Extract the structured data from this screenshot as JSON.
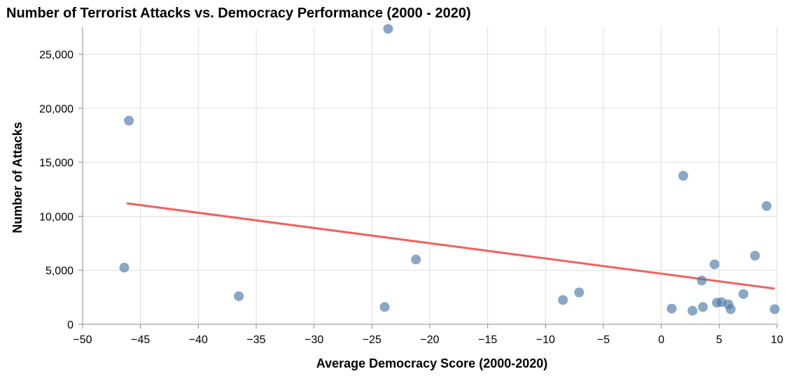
{
  "chart_data": {
    "type": "scatter",
    "title": "Number of Terrorist Attacks vs. Democracy Performance (2000 - 2020)",
    "xlabel": "Average Democracy Score (2000-2020)",
    "ylabel": "Number of Attacks",
    "xlim": [
      -50,
      10
    ],
    "ylim": [
      0,
      27500
    ],
    "grid": true,
    "x_ticks": [
      -50,
      -45,
      -40,
      -35,
      -30,
      -25,
      -20,
      -15,
      -10,
      -5,
      0,
      5,
      10
    ],
    "x_tick_labels": [
      "−50",
      "−45",
      "−40",
      "−35",
      "−30",
      "−25",
      "−20",
      "−15",
      "−10",
      "−5",
      "0",
      "5",
      "10"
    ],
    "y_ticks": [
      0,
      5000,
      10000,
      15000,
      20000,
      25000
    ],
    "y_tick_labels": [
      "0",
      "5,000",
      "10,000",
      "15,000",
      "20,000",
      "25,000"
    ],
    "points": [
      {
        "x": -23.6,
        "y": 27350
      },
      {
        "x": -46.0,
        "y": 18850
      },
      {
        "x": -46.4,
        "y": 5250
      },
      {
        "x": -36.5,
        "y": 2600
      },
      {
        "x": -23.9,
        "y": 1600
      },
      {
        "x": -21.2,
        "y": 6000
      },
      {
        "x": -8.5,
        "y": 2250
      },
      {
        "x": -7.1,
        "y": 2950
      },
      {
        "x": 0.9,
        "y": 1450
      },
      {
        "x": 1.9,
        "y": 13750
      },
      {
        "x": 2.7,
        "y": 1250
      },
      {
        "x": 3.5,
        "y": 4050
      },
      {
        "x": 3.6,
        "y": 1600
      },
      {
        "x": 4.6,
        "y": 5550
      },
      {
        "x": 4.8,
        "y": 2000
      },
      {
        "x": 5.2,
        "y": 2050
      },
      {
        "x": 5.8,
        "y": 1850
      },
      {
        "x": 6.0,
        "y": 1400
      },
      {
        "x": 7.1,
        "y": 2800
      },
      {
        "x": 8.1,
        "y": 6350
      },
      {
        "x": 9.1,
        "y": 10950
      },
      {
        "x": 9.8,
        "y": 1400
      }
    ],
    "trend_line": {
      "x": [
        -46.2,
        9.8
      ],
      "y": [
        11200,
        3300
      ]
    },
    "colors": {
      "points": "#4c78a8",
      "trend": "#f0615f",
      "grid": "#dddddd",
      "axis": "#888888"
    }
  }
}
